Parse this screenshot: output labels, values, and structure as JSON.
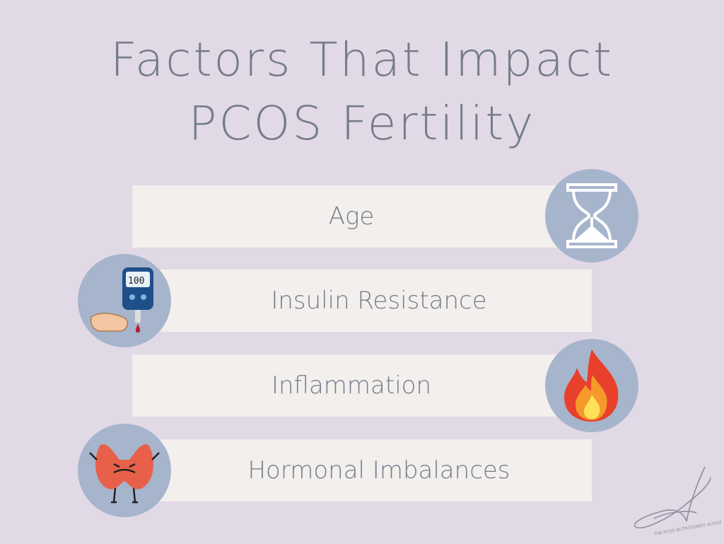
{
  "title": {
    "line1": "Factors That Impact",
    "line2": "PCOS Fertility"
  },
  "factors": [
    {
      "label": "Age",
      "icon": "hourglass-icon"
    },
    {
      "label": "Insulin Resistance",
      "icon": "glucose-meter-icon"
    },
    {
      "label": "Inflammation",
      "icon": "fire-icon"
    },
    {
      "label": "Hormonal Imbalances",
      "icon": "thyroid-icon"
    }
  ],
  "watermark": {
    "letter": "A",
    "text": "THE PCOS NUTRITIONIST ALYSSA"
  },
  "colors": {
    "background": "#e2d9e6",
    "box": "#f2efed",
    "circle": "#a6b5cc",
    "text": "#757c89"
  }
}
